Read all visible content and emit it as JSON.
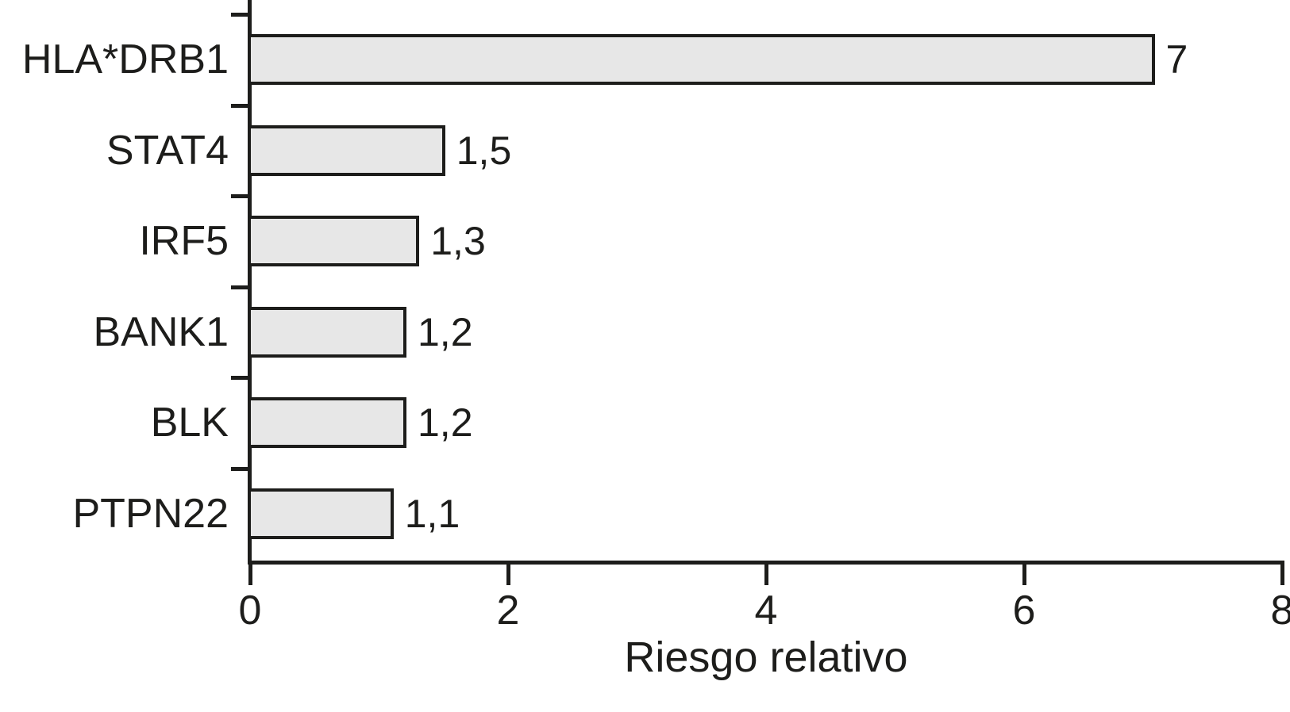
{
  "chart_data": {
    "type": "bar",
    "orientation": "horizontal",
    "title": "",
    "xlabel": "Riesgo relativo",
    "ylabel": "",
    "categories": [
      "HLA*DRB1",
      "STAT4",
      "IRF5",
      "BANK1",
      "BLK",
      "PTPN22"
    ],
    "values": [
      7,
      1.5,
      1.3,
      1.2,
      1.2,
      1.1
    ],
    "value_labels": [
      "7",
      "1,5",
      "1,3",
      "1,2",
      "1,2",
      "1,1"
    ],
    "xlim": [
      0,
      8
    ],
    "x_ticks": [
      0,
      2,
      4,
      6,
      8
    ],
    "x_tick_labels": [
      "0",
      "2",
      "4",
      "6",
      "8"
    ],
    "grid": false,
    "legend": null,
    "colors": {
      "bar_fill": "#e7e7e7",
      "bar_border": "#1d1d1b",
      "axis": "#1d1d1b",
      "text": "#1d1d1b",
      "background": "#ffffff"
    }
  }
}
